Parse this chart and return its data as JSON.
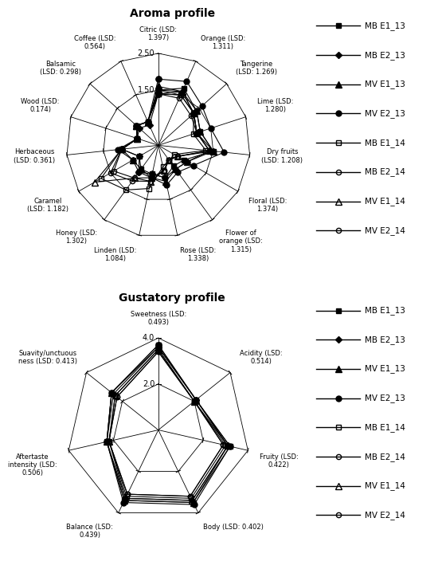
{
  "aroma_categories": [
    "Citric (LSD:\n1.397)",
    "Orange (LSD:\n1.311)",
    "Tangerine\n(LSD: 1.269)",
    "Lime (LSD:\n1.280)",
    "Dry fruits\n(LSD: 1.208)",
    "Floral (LSD:\n1.374)",
    "Flower of\norange (LSD:\n1.315)",
    "Rose (LSD:\n1.338)",
    "Linden (LSD:\n1.084)",
    "Honey (LSD:\n1.302)",
    "Caramel\n(LSD: 1.182)",
    "Herbaceous\n(LSD: 0.361)",
    "Wood (LSD:\n0.174)",
    "Balsamic\n(LSD: 0.298)",
    "Coffee (LSD:\n0.564)"
  ],
  "aroma_rmax": 2.5,
  "aroma_rticks": [
    1.5,
    2.5
  ],
  "aroma_tick_labels": [
    "1.50",
    "2.50"
  ],
  "aroma_data": {
    "MB E1_13": [
      1.5,
      1.7,
      1.4,
      1.2,
      1.5,
      0.8,
      0.7,
      0.9,
      0.8,
      0.8,
      0.6,
      1.0,
      0.6,
      0.8,
      0.7
    ],
    "MB E2_13": [
      1.4,
      1.6,
      1.3,
      1.1,
      1.4,
      0.9,
      0.8,
      0.9,
      0.8,
      0.9,
      0.6,
      1.0,
      0.6,
      0.7,
      0.6
    ],
    "MV E1_13": [
      1.6,
      1.6,
      1.4,
      1.2,
      1.5,
      0.9,
      0.8,
      1.0,
      0.9,
      0.8,
      0.8,
      1.0,
      0.6,
      0.8,
      0.7
    ],
    "MV E2_13": [
      1.8,
      1.9,
      1.6,
      1.5,
      1.8,
      1.1,
      0.9,
      1.1,
      0.9,
      0.9,
      0.8,
      1.1,
      0.6,
      0.8,
      0.7
    ],
    "MB E1_14": [
      1.4,
      1.5,
      1.3,
      1.0,
      1.3,
      0.5,
      0.5,
      0.6,
      1.2,
      1.5,
      1.8,
      1.0,
      0.6,
      0.8,
      0.7
    ],
    "MB E2_14": [
      1.4,
      1.4,
      1.2,
      1.1,
      1.4,
      0.6,
      0.5,
      0.7,
      1.0,
      1.2,
      1.5,
      1.0,
      0.6,
      0.8,
      0.7
    ],
    "MV E1_14": [
      1.5,
      1.6,
      1.3,
      1.1,
      1.4,
      0.6,
      0.5,
      0.7,
      1.0,
      1.1,
      2.0,
      1.0,
      0.6,
      0.8,
      0.7
    ],
    "MV E2_14": [
      1.4,
      1.5,
      1.3,
      1.1,
      1.5,
      0.6,
      0.5,
      0.7,
      0.9,
      1.1,
      1.4,
      1.0,
      0.6,
      0.8,
      0.7
    ]
  },
  "gustatory_categories": [
    "Sweetness (LSD:\n0.493)",
    "Acidity (LSD:\n0.514)",
    "Fruity (LSD:\n0.422)",
    "Body (LSD: 0.402)",
    "Balance (LSD:\n0.439)",
    "Aftertaste\nintensity (LSD:\n0.506)",
    "Suavity/unctuous\nness (LSD: 0.413)"
  ],
  "gustatory_rmax": 4.0,
  "gustatory_rticks": [
    2.0,
    4.0
  ],
  "gustatory_tick_labels": [
    "2.0",
    "4.0"
  ],
  "gustatory_data": {
    "MB E1_13": [
      3.7,
      2.1,
      3.2,
      3.5,
      3.4,
      2.3,
      2.6
    ],
    "MB E2_13": [
      3.6,
      2.1,
      3.1,
      3.4,
      3.3,
      2.3,
      2.5
    ],
    "MV E1_13": [
      3.6,
      2.1,
      3.1,
      3.5,
      3.4,
      2.3,
      2.6
    ],
    "MV E2_13": [
      3.7,
      2.1,
      3.2,
      3.6,
      3.5,
      2.3,
      2.6
    ],
    "MB E1_14": [
      3.5,
      2.0,
      3.0,
      3.3,
      3.2,
      2.2,
      2.4
    ],
    "MB E2_14": [
      3.4,
      2.0,
      2.9,
      3.2,
      3.1,
      2.2,
      2.3
    ],
    "MV E1_14": [
      3.5,
      2.0,
      3.1,
      3.4,
      3.3,
      2.2,
      2.4
    ],
    "MV E2_14": [
      3.4,
      2.0,
      2.9,
      3.2,
      3.1,
      2.2,
      2.3
    ]
  },
  "legend_labels": [
    "MB E1_13",
    "MB E2_13",
    "MV E1_13",
    "MV E2_13",
    "MB E1_14",
    "MB E2_14",
    "MV E1_14",
    "MV E2_14"
  ],
  "aroma_title": "Aroma profile",
  "gustatory_title": "Gustatory profile"
}
